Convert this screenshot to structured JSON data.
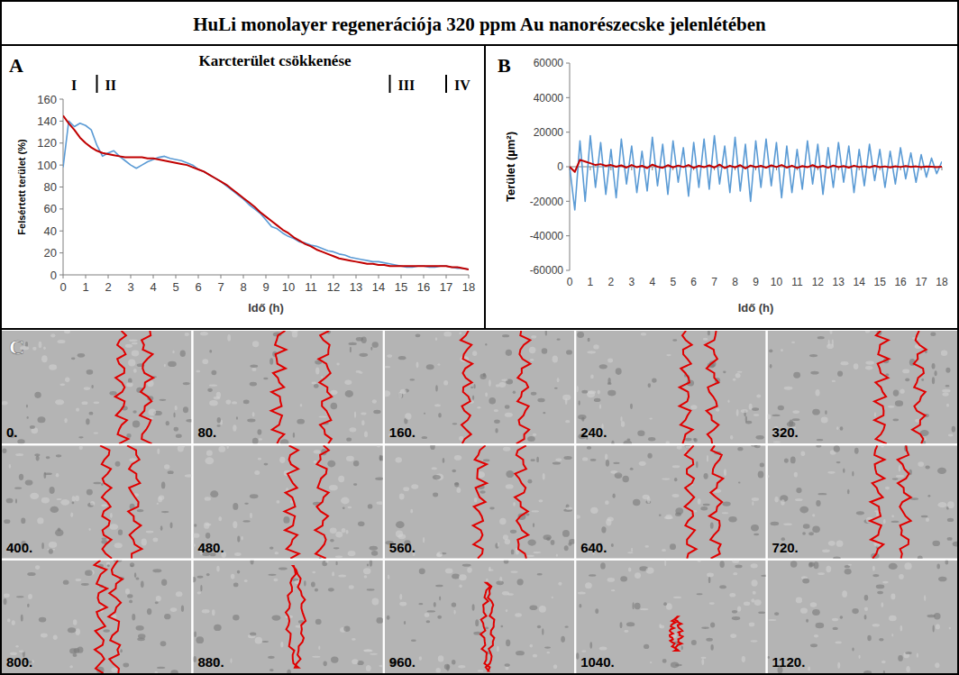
{
  "title": "HuLi monolayer regenerációja 320 ppm Au nanorészecske jelenlétében",
  "chart_data": [
    {
      "type": "line",
      "panel": "A",
      "title": "Karcterület csökkenése",
      "x_label": "Idő (h)",
      "y_label": "Felsértett terület (%)",
      "x": [
        0,
        0.25,
        0.5,
        0.75,
        1,
        1.25,
        1.5,
        1.75,
        2,
        2.25,
        2.5,
        2.75,
        3,
        3.25,
        3.5,
        3.75,
        4,
        4.25,
        4.5,
        4.75,
        5,
        5.25,
        5.5,
        5.75,
        6,
        6.25,
        6.5,
        6.75,
        7,
        7.25,
        7.5,
        7.75,
        8,
        8.25,
        8.5,
        8.75,
        9,
        9.25,
        9.5,
        9.75,
        10,
        10.25,
        10.5,
        10.75,
        11,
        11.25,
        11.5,
        11.75,
        12,
        12.25,
        12.5,
        12.75,
        13,
        13.25,
        13.5,
        13.75,
        14,
        14.25,
        14.5,
        14.75,
        15,
        15.25,
        15.5,
        15.75,
        16,
        16.25,
        16.5,
        16.75,
        17,
        17.25,
        17.5,
        17.75,
        18
      ],
      "series": [
        {
          "color": "#5b9bd5",
          "values": [
            98,
            140,
            135,
            138,
            136,
            132,
            118,
            108,
            111,
            113,
            108,
            104,
            100,
            97,
            100,
            103,
            105,
            107,
            108,
            106,
            105,
            104,
            102,
            100,
            96,
            94,
            91,
            88,
            85,
            81,
            77,
            73,
            69,
            64,
            60,
            56,
            50,
            44,
            42,
            38,
            35,
            33,
            30,
            29,
            27,
            26,
            24,
            22,
            21,
            19,
            18,
            16,
            15,
            14,
            13,
            12,
            12,
            11,
            10,
            9,
            8,
            7,
            7,
            8,
            8,
            7,
            7,
            8,
            8,
            7,
            6,
            6,
            5
          ]
        },
        {
          "color": "#c00000",
          "values": [
            145,
            138,
            132,
            125,
            120,
            116,
            113,
            111,
            110,
            109,
            108,
            107,
            107,
            107,
            107,
            106,
            106,
            105,
            104,
            103,
            102,
            101,
            100,
            98,
            96,
            94,
            91,
            88,
            85,
            82,
            78,
            74,
            70,
            66,
            62,
            57,
            53,
            49,
            45,
            41,
            38,
            34,
            31,
            28,
            26,
            23,
            21,
            19,
            17,
            15,
            14,
            13,
            12,
            11,
            10,
            10,
            9,
            9,
            8,
            8,
            8,
            8,
            8,
            8,
            8,
            8,
            8,
            8,
            8,
            7,
            7,
            6,
            5
          ]
        }
      ],
      "phases": [
        "I",
        "II",
        "III",
        "IV"
      ],
      "boundaries": [
        1.5,
        14.5,
        17
      ],
      "xlim": [
        0,
        18
      ],
      "xticks": [
        0,
        1,
        2,
        3,
        4,
        5,
        6,
        7,
        8,
        9,
        10,
        11,
        12,
        13,
        14,
        15,
        16,
        17,
        18
      ],
      "ylim": [
        0,
        160
      ],
      "yticks": [
        0,
        20,
        40,
        60,
        80,
        100,
        120,
        140,
        160
      ],
      "grid": false
    },
    {
      "type": "line",
      "panel": "B",
      "x_label": "Idő (h)",
      "y_label": "Terület (µm²)",
      "x": [
        0,
        0.25,
        0.5,
        0.75,
        1,
        1.25,
        1.5,
        1.75,
        2,
        2.25,
        2.5,
        2.75,
        3,
        3.25,
        3.5,
        3.75,
        4,
        4.25,
        4.5,
        4.75,
        5,
        5.25,
        5.5,
        5.75,
        6,
        6.25,
        6.5,
        6.75,
        7,
        7.25,
        7.5,
        7.75,
        8,
        8.25,
        8.5,
        8.75,
        9,
        9.25,
        9.5,
        9.75,
        10,
        10.25,
        10.5,
        10.75,
        11,
        11.25,
        11.5,
        11.75,
        12,
        12.25,
        12.5,
        12.75,
        13,
        13.25,
        13.5,
        13.75,
        14,
        14.25,
        14.5,
        14.75,
        15,
        15.25,
        15.5,
        15.75,
        16,
        16.25,
        16.5,
        16.75,
        17,
        17.25,
        17.5,
        17.75,
        18
      ],
      "series": [
        {
          "color": "#5b9bd5",
          "values": [
            0,
            -25000,
            15000,
            -20000,
            18000,
            -12000,
            14000,
            -16000,
            10000,
            -18000,
            16000,
            -10000,
            12000,
            -15000,
            9000,
            -14000,
            17000,
            -11000,
            13000,
            -16000,
            15000,
            -9000,
            11000,
            -17000,
            14000,
            -12000,
            16000,
            -13000,
            18000,
            -10000,
            12000,
            -15000,
            17000,
            -14000,
            13000,
            -20000,
            15000,
            -12000,
            16000,
            -11000,
            14000,
            -18000,
            12000,
            -15000,
            10000,
            -13000,
            15000,
            -10000,
            13000,
            -16000,
            11000,
            -12000,
            14000,
            -9000,
            12000,
            -15000,
            10000,
            -11000,
            13000,
            -8000,
            10000,
            -12000,
            9000,
            -10000,
            11000,
            -7000,
            8000,
            -9000,
            7000,
            -6000,
            5000,
            -4000,
            3000
          ]
        },
        {
          "color": "#c00000",
          "values": [
            0,
            -3000,
            4000,
            3000,
            2000,
            1000,
            1500,
            500,
            1000,
            0,
            800,
            -500,
            1000,
            -300,
            500,
            -800,
            1200,
            0,
            -600,
            900,
            -400,
            700,
            -200,
            1000,
            -700,
            500,
            -300,
            800,
            -500,
            1200,
            -800,
            600,
            -400,
            900,
            -1000,
            700,
            -300,
            500,
            -600,
            800,
            -200,
            1000,
            -500,
            600,
            -700,
            400,
            -300,
            900,
            -400,
            500,
            -600,
            700,
            -300,
            400,
            -500,
            600,
            -200,
            300,
            -400,
            500,
            -300,
            200,
            -400,
            300,
            -200,
            400,
            -100,
            200,
            -300,
            100,
            0,
            -200,
            0
          ]
        }
      ],
      "xlim": [
        0,
        18
      ],
      "xticks": [
        0,
        1,
        2,
        3,
        4,
        5,
        6,
        7,
        8,
        9,
        10,
        11,
        12,
        13,
        14,
        15,
        16,
        17,
        18
      ],
      "ylim": [
        -60000,
        60000
      ],
      "yticks": [
        -60000,
        -40000,
        -20000,
        0,
        20000,
        40000,
        60000
      ],
      "grid": false
    }
  ],
  "image_panel": {
    "letter": "C",
    "frames": [
      "0.",
      "80.",
      "160.",
      "240.",
      "320.",
      "400.",
      "480.",
      "560.",
      "640.",
      "720.",
      "800.",
      "880.",
      "960.",
      "1040.",
      "1120."
    ]
  }
}
